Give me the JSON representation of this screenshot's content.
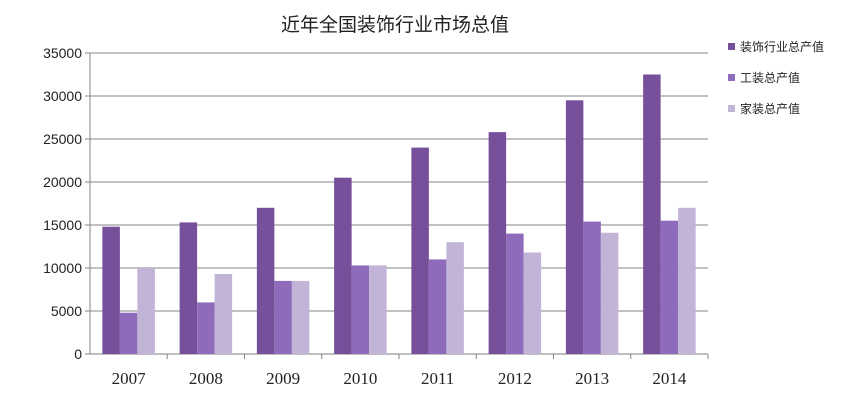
{
  "chart_data": {
    "type": "bar",
    "title": "近年全国装饰行业市场总值",
    "categories": [
      "2007",
      "2008",
      "2009",
      "2010",
      "2011",
      "2012",
      "2013",
      "2014"
    ],
    "series": [
      {
        "name": "装饰行业总产值",
        "color": "#76509a",
        "values": [
          14800,
          15300,
          17000,
          20500,
          24000,
          25800,
          29500,
          32500
        ]
      },
      {
        "name": "工装总产值",
        "color": "#8f6cbb",
        "values": [
          4800,
          6000,
          8500,
          10300,
          11000,
          14000,
          15400,
          15500
        ]
      },
      {
        "name": "家装总产值",
        "color": "#c1b4d7",
        "values": [
          10000,
          9300,
          8500,
          10300,
          13000,
          11800,
          14100,
          17000
        ]
      }
    ],
    "ylim": [
      0,
      35000
    ],
    "yticks": [
      0,
      5000,
      10000,
      15000,
      20000,
      25000,
      30000,
      35000
    ],
    "grid": true,
    "legend": "right"
  }
}
